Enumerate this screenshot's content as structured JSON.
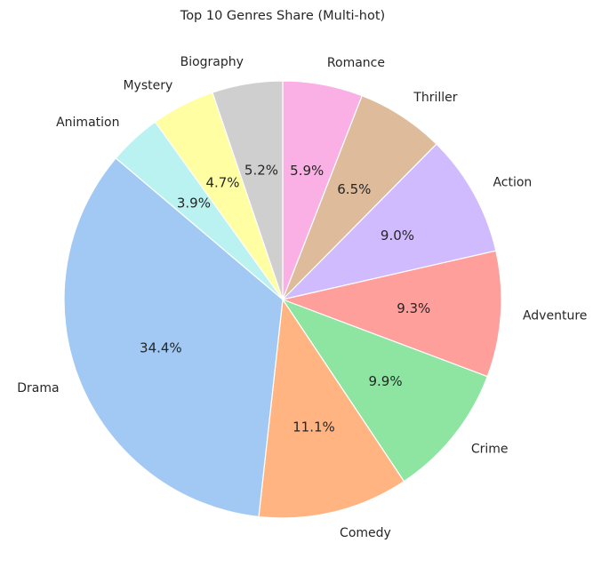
{
  "chart_data": {
    "type": "pie",
    "title": "Top 10 Genres Share (Multi-hot)",
    "start_angle_deg": 90,
    "direction": "clockwise",
    "categories": [
      "Romance",
      "Thriller",
      "Action",
      "Adventure",
      "Crime",
      "Comedy",
      "Drama",
      "Animation",
      "Mystery",
      "Biography"
    ],
    "values": [
      5.9,
      6.5,
      9.0,
      9.3,
      9.9,
      11.1,
      34.4,
      3.9,
      4.7,
      5.2
    ],
    "labels": [
      "5.9%",
      "6.5%",
      "9.0%",
      "9.3%",
      "9.9%",
      "11.1%",
      "34.4%",
      "3.9%",
      "4.7%",
      "5.2%"
    ],
    "colors": [
      "#fab0e4",
      "#debb9b",
      "#d0bbff",
      "#ff9f9b",
      "#8de5a1",
      "#ffb482",
      "#a1c9f4",
      "#b9f2f0",
      "#fffea3",
      "#cfcfcf"
    ],
    "edge_color": "#ffffff"
  }
}
